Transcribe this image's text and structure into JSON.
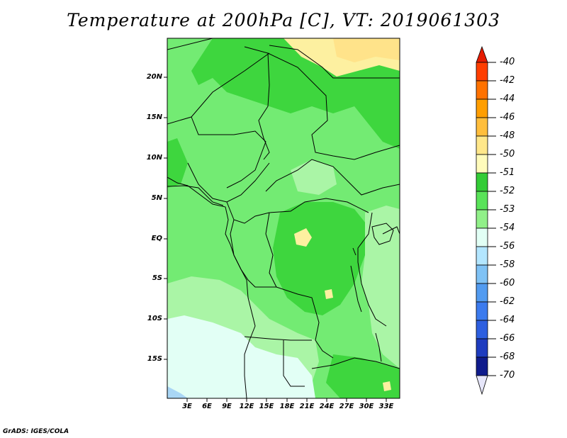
{
  "title": "Temperature at 200hPa [C], VT: 2019061303",
  "credit": "GrADS: IGES/COLA",
  "map": {
    "field": "Temperature at 200hPa",
    "units": "C",
    "valid_time": "2019061303",
    "lat_range": [
      -20,
      25
    ],
    "lon_range": [
      0,
      35
    ],
    "lat_ticks": [
      "20N",
      "15N",
      "10N",
      "5N",
      "EQ",
      "5S",
      "10S",
      "15S"
    ],
    "lon_ticks": [
      "3E",
      "6E",
      "9E",
      "12E",
      "15E",
      "18E",
      "21E",
      "24E",
      "27E",
      "30E",
      "33E"
    ]
  },
  "legend": {
    "labels": [
      "-40",
      "-42",
      "-44",
      "-46",
      "-48",
      "-50",
      "-51",
      "-52",
      "-53",
      "-54",
      "-56",
      "-58",
      "-60",
      "-62",
      "-64",
      "-66",
      "-68",
      "-70"
    ],
    "colors": [
      "#e61c02",
      "#ff3e00",
      "#ff7200",
      "#ff9e00",
      "#ffbe3c",
      "#ffe78a",
      "#fffbbb",
      "#33cc36",
      "#59e359",
      "#91f089",
      "#e2fff5",
      "#b3e6ff",
      "#7fc2f5",
      "#529bf0",
      "#3c7bee",
      "#2d5fe0",
      "#1e3cbf",
      "#0f1b8c",
      "#070752",
      "#e6e6fa"
    ]
  }
}
